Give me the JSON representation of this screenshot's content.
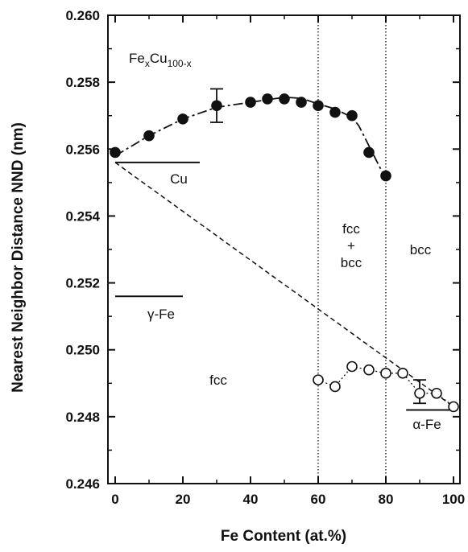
{
  "chart_data": {
    "type": "scatter",
    "title": "",
    "xlabel": "Fe Content    (at.%)",
    "ylabel": "Nearest Neighbor Distance NND    (nm)",
    "xlim": [
      0,
      100
    ],
    "ylim": [
      0.246,
      0.26
    ],
    "x_ticks": [
      0,
      20,
      40,
      60,
      80,
      100
    ],
    "x_tick_labels": [
      "0",
      "20",
      "40",
      "60",
      "80",
      "100"
    ],
    "y_ticks": [
      0.246,
      0.248,
      0.25,
      0.252,
      0.254,
      0.256,
      0.258,
      0.26
    ],
    "y_tick_labels": [
      "0.246",
      "0.248",
      "0.250",
      "0.252",
      "0.254",
      "0.256",
      "0.258",
      "0.260"
    ],
    "grid": false,
    "legend": "none",
    "series": [
      {
        "marker": "filled-circle",
        "x": [
          0,
          10,
          20,
          30,
          40,
          45,
          50,
          55,
          60,
          65,
          70,
          75,
          80
        ],
        "y": [
          0.2559,
          0.2564,
          0.2569,
          0.2573,
          0.2574,
          0.2575,
          0.2575,
          0.2574,
          0.2573,
          0.2571,
          0.257,
          0.2559,
          0.2552
        ]
      },
      {
        "marker": "open-circle",
        "x": [
          60,
          65,
          70,
          75,
          80,
          85,
          90,
          95,
          100
        ],
        "y": [
          0.2491,
          0.2489,
          0.2495,
          0.2494,
          0.2493,
          0.2493,
          0.2487,
          0.2487,
          0.2483
        ]
      }
    ],
    "error_bars": [
      {
        "x": 30,
        "y": 0.2573,
        "low": 0.2568,
        "high": 0.2578
      },
      {
        "x": 90,
        "y": 0.2487,
        "low": 0.2484,
        "high": 0.2491
      }
    ],
    "fit_curve": {
      "style": "dash-dot",
      "x": [
        0,
        10,
        20,
        30,
        40,
        50,
        55,
        60,
        65,
        70,
        72,
        75,
        78,
        80
      ],
      "y": [
        0.2558,
        0.2564,
        0.2569,
        0.25725,
        0.2574,
        0.25755,
        0.25752,
        0.25735,
        0.2572,
        0.25695,
        0.2567,
        0.2561,
        0.2555,
        0.2551
      ]
    },
    "open_fit_curve": {
      "style": "dotted",
      "x": [
        60,
        65,
        70,
        75,
        80,
        85,
        90,
        95,
        100
      ],
      "y": [
        0.2491,
        0.2489,
        0.2495,
        0.2494,
        0.2493,
        0.2493,
        0.2487,
        0.2487,
        0.2483
      ]
    },
    "vegard_line": {
      "style": "dashed",
      "x": [
        0,
        100
      ],
      "y": [
        0.2556,
        0.2483
      ]
    },
    "phase_boundaries": [
      60,
      80
    ],
    "reference_lines": [
      {
        "label": "Cu",
        "y": 0.2556,
        "x_from": 0,
        "x_to": 25
      },
      {
        "label": "γ-Fe",
        "y": 0.2516,
        "x_from": 0,
        "x_to": 20
      },
      {
        "label": "α-Fe",
        "y": 0.2482,
        "x_from": 86,
        "x_to": 100
      }
    ],
    "annotations": {
      "formula": {
        "base1": "Fe",
        "sub1": "x",
        "base2": "Cu",
        "sub2": "100-x"
      },
      "region_fcc": "fcc",
      "region_mixed_top": "fcc",
      "region_mixed_plus": "+",
      "region_mixed_bottom": "bcc",
      "region_bcc": "bcc"
    }
  }
}
